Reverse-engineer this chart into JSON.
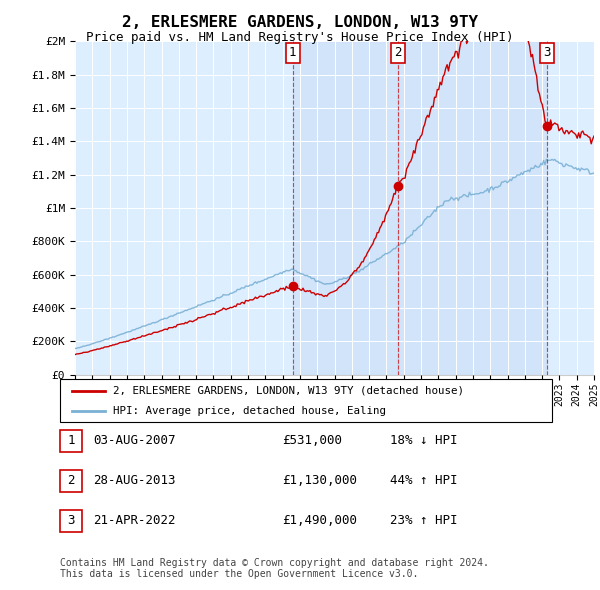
{
  "title": "2, ERLESMERE GARDENS, LONDON, W13 9TY",
  "subtitle": "Price paid vs. HM Land Registry's House Price Index (HPI)",
  "x_start_year": 1995,
  "x_end_year": 2025,
  "y_max": 2000000,
  "y_ticks": [
    0,
    200000,
    400000,
    600000,
    800000,
    1000000,
    1200000,
    1400000,
    1600000,
    1800000,
    2000000
  ],
  "y_tick_labels": [
    "£0",
    "£200K",
    "£400K",
    "£600K",
    "£800K",
    "£1M",
    "£1.2M",
    "£1.4M",
    "£1.6M",
    "£1.8M",
    "£2M"
  ],
  "sales": [
    {
      "date_year": 2007.58,
      "price": 531000,
      "label": "1"
    },
    {
      "date_year": 2013.66,
      "price": 1130000,
      "label": "2"
    },
    {
      "date_year": 2022.3,
      "price": 1490000,
      "label": "3"
    }
  ],
  "sale_labels": [
    {
      "num": "1",
      "date": "03-AUG-2007",
      "price": "£531,000",
      "hpi": "18% ↓ HPI"
    },
    {
      "num": "2",
      "date": "28-AUG-2013",
      "price": "£1,130,000",
      "hpi": "44% ↑ HPI"
    },
    {
      "num": "3",
      "date": "21-APR-2022",
      "price": "£1,490,000",
      "hpi": "23% ↑ HPI"
    }
  ],
  "legend_entries": [
    "2, ERLESMERE GARDENS, LONDON, W13 9TY (detached house)",
    "HPI: Average price, detached house, Ealing"
  ],
  "footer": "Contains HM Land Registry data © Crown copyright and database right 2024.\nThis data is licensed under the Open Government Licence v3.0.",
  "property_color": "#cc0000",
  "hpi_color": "#7ab0d4",
  "background_color": "#ffffff",
  "plot_bg_color": "#ddeeff",
  "shade_color": "#ccddf0"
}
